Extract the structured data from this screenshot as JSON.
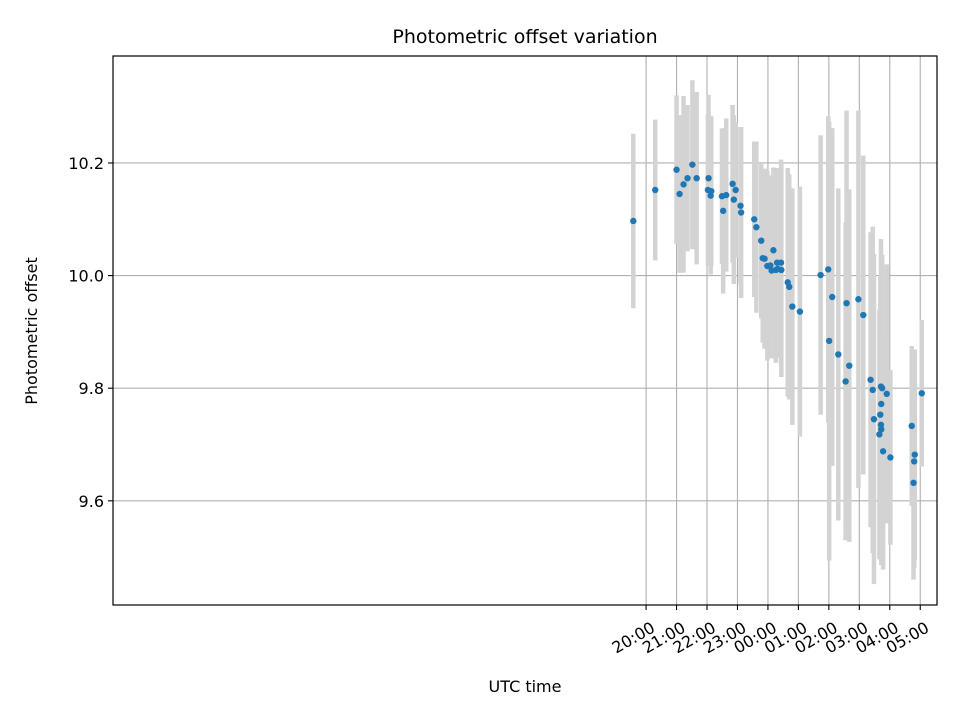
{
  "chart_data": {
    "type": "scatter",
    "title": "Photometric offset variation",
    "xlabel": "UTC time",
    "ylabel": "Photometric offset",
    "grid": true,
    "x_unit": "hours since 00:00 UTC",
    "xlim": [
      -21.5,
      5.55
    ],
    "ylim": [
      9.415,
      10.39
    ],
    "x_ticks": [
      {
        "value": -4,
        "label": "20:00"
      },
      {
        "value": -3,
        "label": "21:00"
      },
      {
        "value": -2,
        "label": "22:00"
      },
      {
        "value": -1,
        "label": "23:00"
      },
      {
        "value": 0,
        "label": "00:00"
      },
      {
        "value": 1,
        "label": "01:00"
      },
      {
        "value": 2,
        "label": "02:00"
      },
      {
        "value": 3,
        "label": "03:00"
      },
      {
        "value": 4,
        "label": "04:00"
      },
      {
        "value": 5,
        "label": "05:00"
      }
    ],
    "y_ticks": [
      {
        "value": 9.6,
        "label": "9.6"
      },
      {
        "value": 9.8,
        "label": "9.8"
      },
      {
        "value": 10.0,
        "label": "10.0"
      },
      {
        "value": 10.2,
        "label": "10.2"
      }
    ],
    "point_color": "#1f77b4",
    "errorbar_color": "#d3d3d3",
    "points": [
      {
        "x": -4.42,
        "y": 10.097,
        "err": 0.155
      },
      {
        "x": -3.7,
        "y": 10.152,
        "err": 0.125
      },
      {
        "x": -3.0,
        "y": 10.188,
        "err": 0.132
      },
      {
        "x": -2.9,
        "y": 10.145,
        "err": 0.14
      },
      {
        "x": -2.77,
        "y": 10.162,
        "err": 0.157
      },
      {
        "x": -2.64,
        "y": 10.173,
        "err": 0.13
      },
      {
        "x": -2.48,
        "y": 10.197,
        "err": 0.15
      },
      {
        "x": -2.34,
        "y": 10.173,
        "err": 0.153
      },
      {
        "x": -1.97,
        "y": 10.152,
        "err": 0.135
      },
      {
        "x": -1.95,
        "y": 10.173,
        "err": 0.148
      },
      {
        "x": -1.88,
        "y": 10.142,
        "err": 0.14
      },
      {
        "x": -1.86,
        "y": 10.15,
        "err": 0.133
      },
      {
        "x": -1.51,
        "y": 10.141,
        "err": 0.12
      },
      {
        "x": -1.47,
        "y": 10.115,
        "err": 0.147
      },
      {
        "x": -1.37,
        "y": 10.143,
        "err": 0.136
      },
      {
        "x": -1.16,
        "y": 10.163,
        "err": 0.14
      },
      {
        "x": -1.12,
        "y": 10.135,
        "err": 0.15
      },
      {
        "x": -1.06,
        "y": 10.152,
        "err": 0.12
      },
      {
        "x": -0.9,
        "y": 10.124,
        "err": 0.14
      },
      {
        "x": -0.88,
        "y": 10.112,
        "err": 0.152
      },
      {
        "x": -0.45,
        "y": 10.1,
        "err": 0.138
      },
      {
        "x": -0.38,
        "y": 10.086,
        "err": 0.152
      },
      {
        "x": -0.22,
        "y": 10.062,
        "err": 0.138
      },
      {
        "x": -0.17,
        "y": 10.031,
        "err": 0.15
      },
      {
        "x": -0.11,
        "y": 10.03,
        "err": 0.16
      },
      {
        "x": -0.02,
        "y": 10.017,
        "err": 0.168
      },
      {
        "x": 0.08,
        "y": 10.018,
        "err": 0.16
      },
      {
        "x": 0.12,
        "y": 10.009,
        "err": 0.156
      },
      {
        "x": 0.18,
        "y": 10.045,
        "err": 0.147
      },
      {
        "x": 0.26,
        "y": 10.01,
        "err": 0.165
      },
      {
        "x": 0.3,
        "y": 10.023,
        "err": 0.168
      },
      {
        "x": 0.32,
        "y": 10.012,
        "err": 0.157
      },
      {
        "x": 0.43,
        "y": 10.023,
        "err": 0.183
      },
      {
        "x": 0.44,
        "y": 10.01,
        "err": 0.19
      },
      {
        "x": 0.65,
        "y": 9.988,
        "err": 0.203
      },
      {
        "x": 0.7,
        "y": 9.98,
        "err": 0.2
      },
      {
        "x": 0.8,
        "y": 9.945,
        "err": 0.21
      },
      {
        "x": 1.05,
        "y": 9.936,
        "err": 0.222
      },
      {
        "x": 1.73,
        "y": 10.001,
        "err": 0.248
      },
      {
        "x": 1.98,
        "y": 10.011,
        "err": 0.272
      },
      {
        "x": 2.01,
        "y": 9.884,
        "err": 0.39
      },
      {
        "x": 2.11,
        "y": 9.962,
        "err": 0.3
      },
      {
        "x": 2.31,
        "y": 9.86,
        "err": 0.295
      },
      {
        "x": 2.55,
        "y": 9.812,
        "err": 0.282
      },
      {
        "x": 2.58,
        "y": 9.951,
        "err": 0.342
      },
      {
        "x": 2.67,
        "y": 9.84,
        "err": 0.313
      },
      {
        "x": 2.97,
        "y": 9.958,
        "err": 0.335
      },
      {
        "x": 3.13,
        "y": 9.93,
        "err": 0.283
      },
      {
        "x": 3.37,
        "y": 9.815,
        "err": 0.262
      },
      {
        "x": 3.44,
        "y": 9.797,
        "err": 0.29
      },
      {
        "x": 3.48,
        "y": 9.745,
        "err": 0.293
      },
      {
        "x": 3.66,
        "y": 9.718,
        "err": 0.222
      },
      {
        "x": 3.69,
        "y": 9.753,
        "err": 0.245
      },
      {
        "x": 3.71,
        "y": 9.803,
        "err": 0.262
      },
      {
        "x": 3.71,
        "y": 9.735,
        "err": 0.235
      },
      {
        "x": 3.72,
        "y": 9.727,
        "err": 0.241
      },
      {
        "x": 3.72,
        "y": 9.772,
        "err": 0.265
      },
      {
        "x": 3.75,
        "y": 9.8,
        "err": 0.237
      },
      {
        "x": 3.78,
        "y": 9.688,
        "err": 0.21
      },
      {
        "x": 3.9,
        "y": 9.79,
        "err": 0.23
      },
      {
        "x": 4.02,
        "y": 9.677,
        "err": 0.155
      },
      {
        "x": 4.72,
        "y": 9.733,
        "err": 0.142
      },
      {
        "x": 4.78,
        "y": 9.632,
        "err": 0.172
      },
      {
        "x": 4.8,
        "y": 9.67,
        "err": 0.19
      },
      {
        "x": 4.82,
        "y": 9.682,
        "err": 0.187
      },
      {
        "x": 5.05,
        "y": 9.791,
        "err": 0.13
      }
    ]
  }
}
